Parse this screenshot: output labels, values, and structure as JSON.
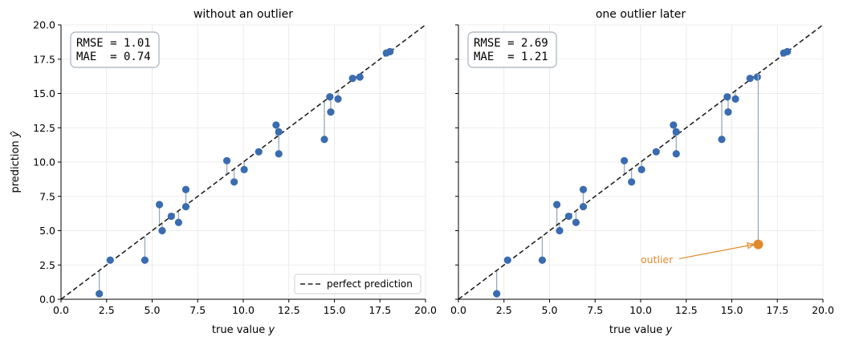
{
  "colors": {
    "point": "#3a6cb0",
    "residual": "#9aaabb",
    "diagonal": "#222222",
    "grid": "#e6e6e6",
    "outlier": "#e08a2c",
    "box_border": "#a7b0bb"
  },
  "legend": {
    "label": "perfect prediction",
    "placement": "lower-right"
  },
  "chart_data": [
    {
      "type": "scatter",
      "title": "without an outlier",
      "xlabel": "true value y",
      "ylabel": "prediction ŷ",
      "xlim": [
        0,
        20
      ],
      "ylim": [
        0,
        20
      ],
      "x_ticks": [
        "0.0",
        "2.5",
        "5.0",
        "7.5",
        "10.0",
        "12.5",
        "15.0",
        "17.5",
        "20.0"
      ],
      "y_ticks": [
        "0.0",
        "2.5",
        "5.0",
        "7.5",
        "10.0",
        "12.5",
        "15.0",
        "17.5",
        "20.0"
      ],
      "grid": true,
      "reference_line": "y = x",
      "stats": [
        "RMSE = 1.01",
        "MAE  = 0.74"
      ],
      "points": [
        {
          "x": 2.1,
          "y": 0.4
        },
        {
          "x": 2.7,
          "y": 2.85
        },
        {
          "x": 4.6,
          "y": 2.85
        },
        {
          "x": 5.4,
          "y": 6.9
        },
        {
          "x": 5.55,
          "y": 5.0
        },
        {
          "x": 6.05,
          "y": 6.05
        },
        {
          "x": 6.45,
          "y": 5.6
        },
        {
          "x": 6.85,
          "y": 6.75
        },
        {
          "x": 6.85,
          "y": 8.0
        },
        {
          "x": 9.1,
          "y": 10.1
        },
        {
          "x": 9.5,
          "y": 8.55
        },
        {
          "x": 10.05,
          "y": 9.45
        },
        {
          "x": 10.85,
          "y": 10.75
        },
        {
          "x": 11.8,
          "y": 12.7
        },
        {
          "x": 11.95,
          "y": 12.2
        },
        {
          "x": 11.95,
          "y": 10.6
        },
        {
          "x": 14.45,
          "y": 11.65
        },
        {
          "x": 14.75,
          "y": 14.75
        },
        {
          "x": 14.8,
          "y": 13.65
        },
        {
          "x": 15.2,
          "y": 14.6
        },
        {
          "x": 16.0,
          "y": 16.1
        },
        {
          "x": 16.4,
          "y": 16.2
        },
        {
          "x": 17.85,
          "y": 17.95
        },
        {
          "x": 18.05,
          "y": 18.05
        }
      ]
    },
    {
      "type": "scatter",
      "title": "one outlier later",
      "xlabel": "true value y",
      "xlim": [
        0,
        20
      ],
      "ylim": [
        0,
        20
      ],
      "x_ticks": [
        "0.0",
        "2.5",
        "5.0",
        "7.5",
        "10.0",
        "12.5",
        "15.0",
        "17.5",
        "20.0"
      ],
      "grid": true,
      "reference_line": "y = x",
      "stats": [
        "RMSE = 2.69",
        "MAE  = 1.21"
      ],
      "points": [
        {
          "x": 2.1,
          "y": 0.4
        },
        {
          "x": 2.7,
          "y": 2.85
        },
        {
          "x": 4.6,
          "y": 2.85
        },
        {
          "x": 5.4,
          "y": 6.9
        },
        {
          "x": 5.55,
          "y": 5.0
        },
        {
          "x": 6.05,
          "y": 6.05
        },
        {
          "x": 6.45,
          "y": 5.6
        },
        {
          "x": 6.85,
          "y": 6.75
        },
        {
          "x": 6.85,
          "y": 8.0
        },
        {
          "x": 9.1,
          "y": 10.1
        },
        {
          "x": 9.5,
          "y": 8.55
        },
        {
          "x": 10.05,
          "y": 9.45
        },
        {
          "x": 10.85,
          "y": 10.75
        },
        {
          "x": 11.8,
          "y": 12.7
        },
        {
          "x": 11.95,
          "y": 12.2
        },
        {
          "x": 11.95,
          "y": 10.6
        },
        {
          "x": 14.45,
          "y": 11.65
        },
        {
          "x": 14.75,
          "y": 14.75
        },
        {
          "x": 14.8,
          "y": 13.65
        },
        {
          "x": 15.2,
          "y": 14.6
        },
        {
          "x": 16.0,
          "y": 16.1
        },
        {
          "x": 16.4,
          "y": 16.2
        },
        {
          "x": 17.85,
          "y": 17.95
        },
        {
          "x": 18.05,
          "y": 18.05
        }
      ],
      "outlier": {
        "x": 16.45,
        "y": 4.0,
        "label": "outlier",
        "label_x": 10.0,
        "label_y": 2.9
      }
    }
  ]
}
